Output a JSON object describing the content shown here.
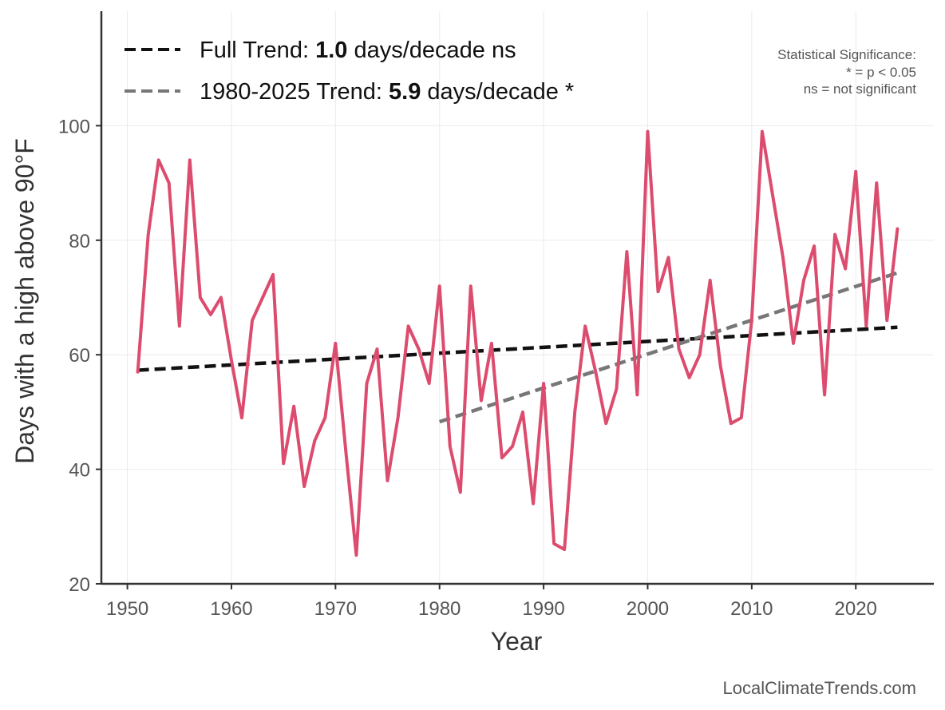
{
  "chart_data": {
    "type": "line",
    "xlabel": "Year",
    "ylabel": "Days with a high above 90°F",
    "xlim": [
      1947.5,
      2027.5
    ],
    "ylim": [
      20,
      120
    ],
    "xticks": [
      1950,
      1960,
      1970,
      1980,
      1990,
      2000,
      2010,
      2020
    ],
    "yticks": [
      20,
      40,
      60,
      80,
      100
    ],
    "grid": true,
    "series": [
      {
        "name": "Days with a high above 90°F",
        "color": "#dc4c6e",
        "x": [
          1951,
          1952,
          1953,
          1954,
          1955,
          1956,
          1957,
          1958,
          1959,
          1960,
          1961,
          1962,
          1963,
          1964,
          1965,
          1966,
          1967,
          1968,
          1969,
          1970,
          1971,
          1972,
          1973,
          1974,
          1975,
          1976,
          1977,
          1978,
          1979,
          1980,
          1981,
          1982,
          1983,
          1984,
          1985,
          1986,
          1987,
          1988,
          1989,
          1990,
          1991,
          1992,
          1993,
          1994,
          1995,
          1996,
          1997,
          1998,
          1999,
          2000,
          2001,
          2002,
          2003,
          2004,
          2005,
          2006,
          2007,
          2008,
          2009,
          2010,
          2011,
          2012,
          2013,
          2014,
          2015,
          2016,
          2017,
          2018,
          2019,
          2020,
          2021,
          2022,
          2023,
          2024
        ],
        "values": [
          57,
          81,
          94,
          90,
          65,
          94,
          70,
          67,
          70,
          59,
          49,
          66,
          70,
          74,
          41,
          51,
          37,
          45,
          49,
          62,
          43,
          25,
          55,
          61,
          38,
          49,
          65,
          61,
          55,
          72,
          44,
          36,
          72,
          52,
          62,
          42,
          44,
          50,
          34,
          55,
          27,
          26,
          50,
          65,
          57,
          48,
          54,
          78,
          53,
          99,
          71,
          77,
          61,
          56,
          60,
          73,
          58,
          48,
          49,
          66,
          99,
          88,
          77,
          62,
          73,
          79,
          53,
          81,
          75,
          92,
          65,
          90,
          66,
          82
        ]
      }
    ],
    "trends": [
      {
        "name": "Full Trend",
        "color": "#111111",
        "dash": "dashed",
        "x": [
          1951,
          2024
        ],
        "y": [
          57.3,
          64.8
        ]
      },
      {
        "name": "1980-2025 Trend",
        "color": "#777777",
        "dash": "dashed",
        "x": [
          1980,
          2024
        ],
        "y": [
          48.3,
          74.3
        ]
      }
    ]
  },
  "legend": {
    "items": [
      {
        "prefix": "Full Trend: ",
        "value": "1.0",
        "suffix": " days/decade ns",
        "color": "#111111"
      },
      {
        "prefix": "1980-2025 Trend: ",
        "value": "5.9",
        "suffix": " days/decade *",
        "color": "#777777"
      }
    ]
  },
  "significance": {
    "title": "Statistical Significance:",
    "line1": "* = p < 0.05",
    "line2": "ns = not significant"
  },
  "credit": "LocalClimateTrends.com"
}
